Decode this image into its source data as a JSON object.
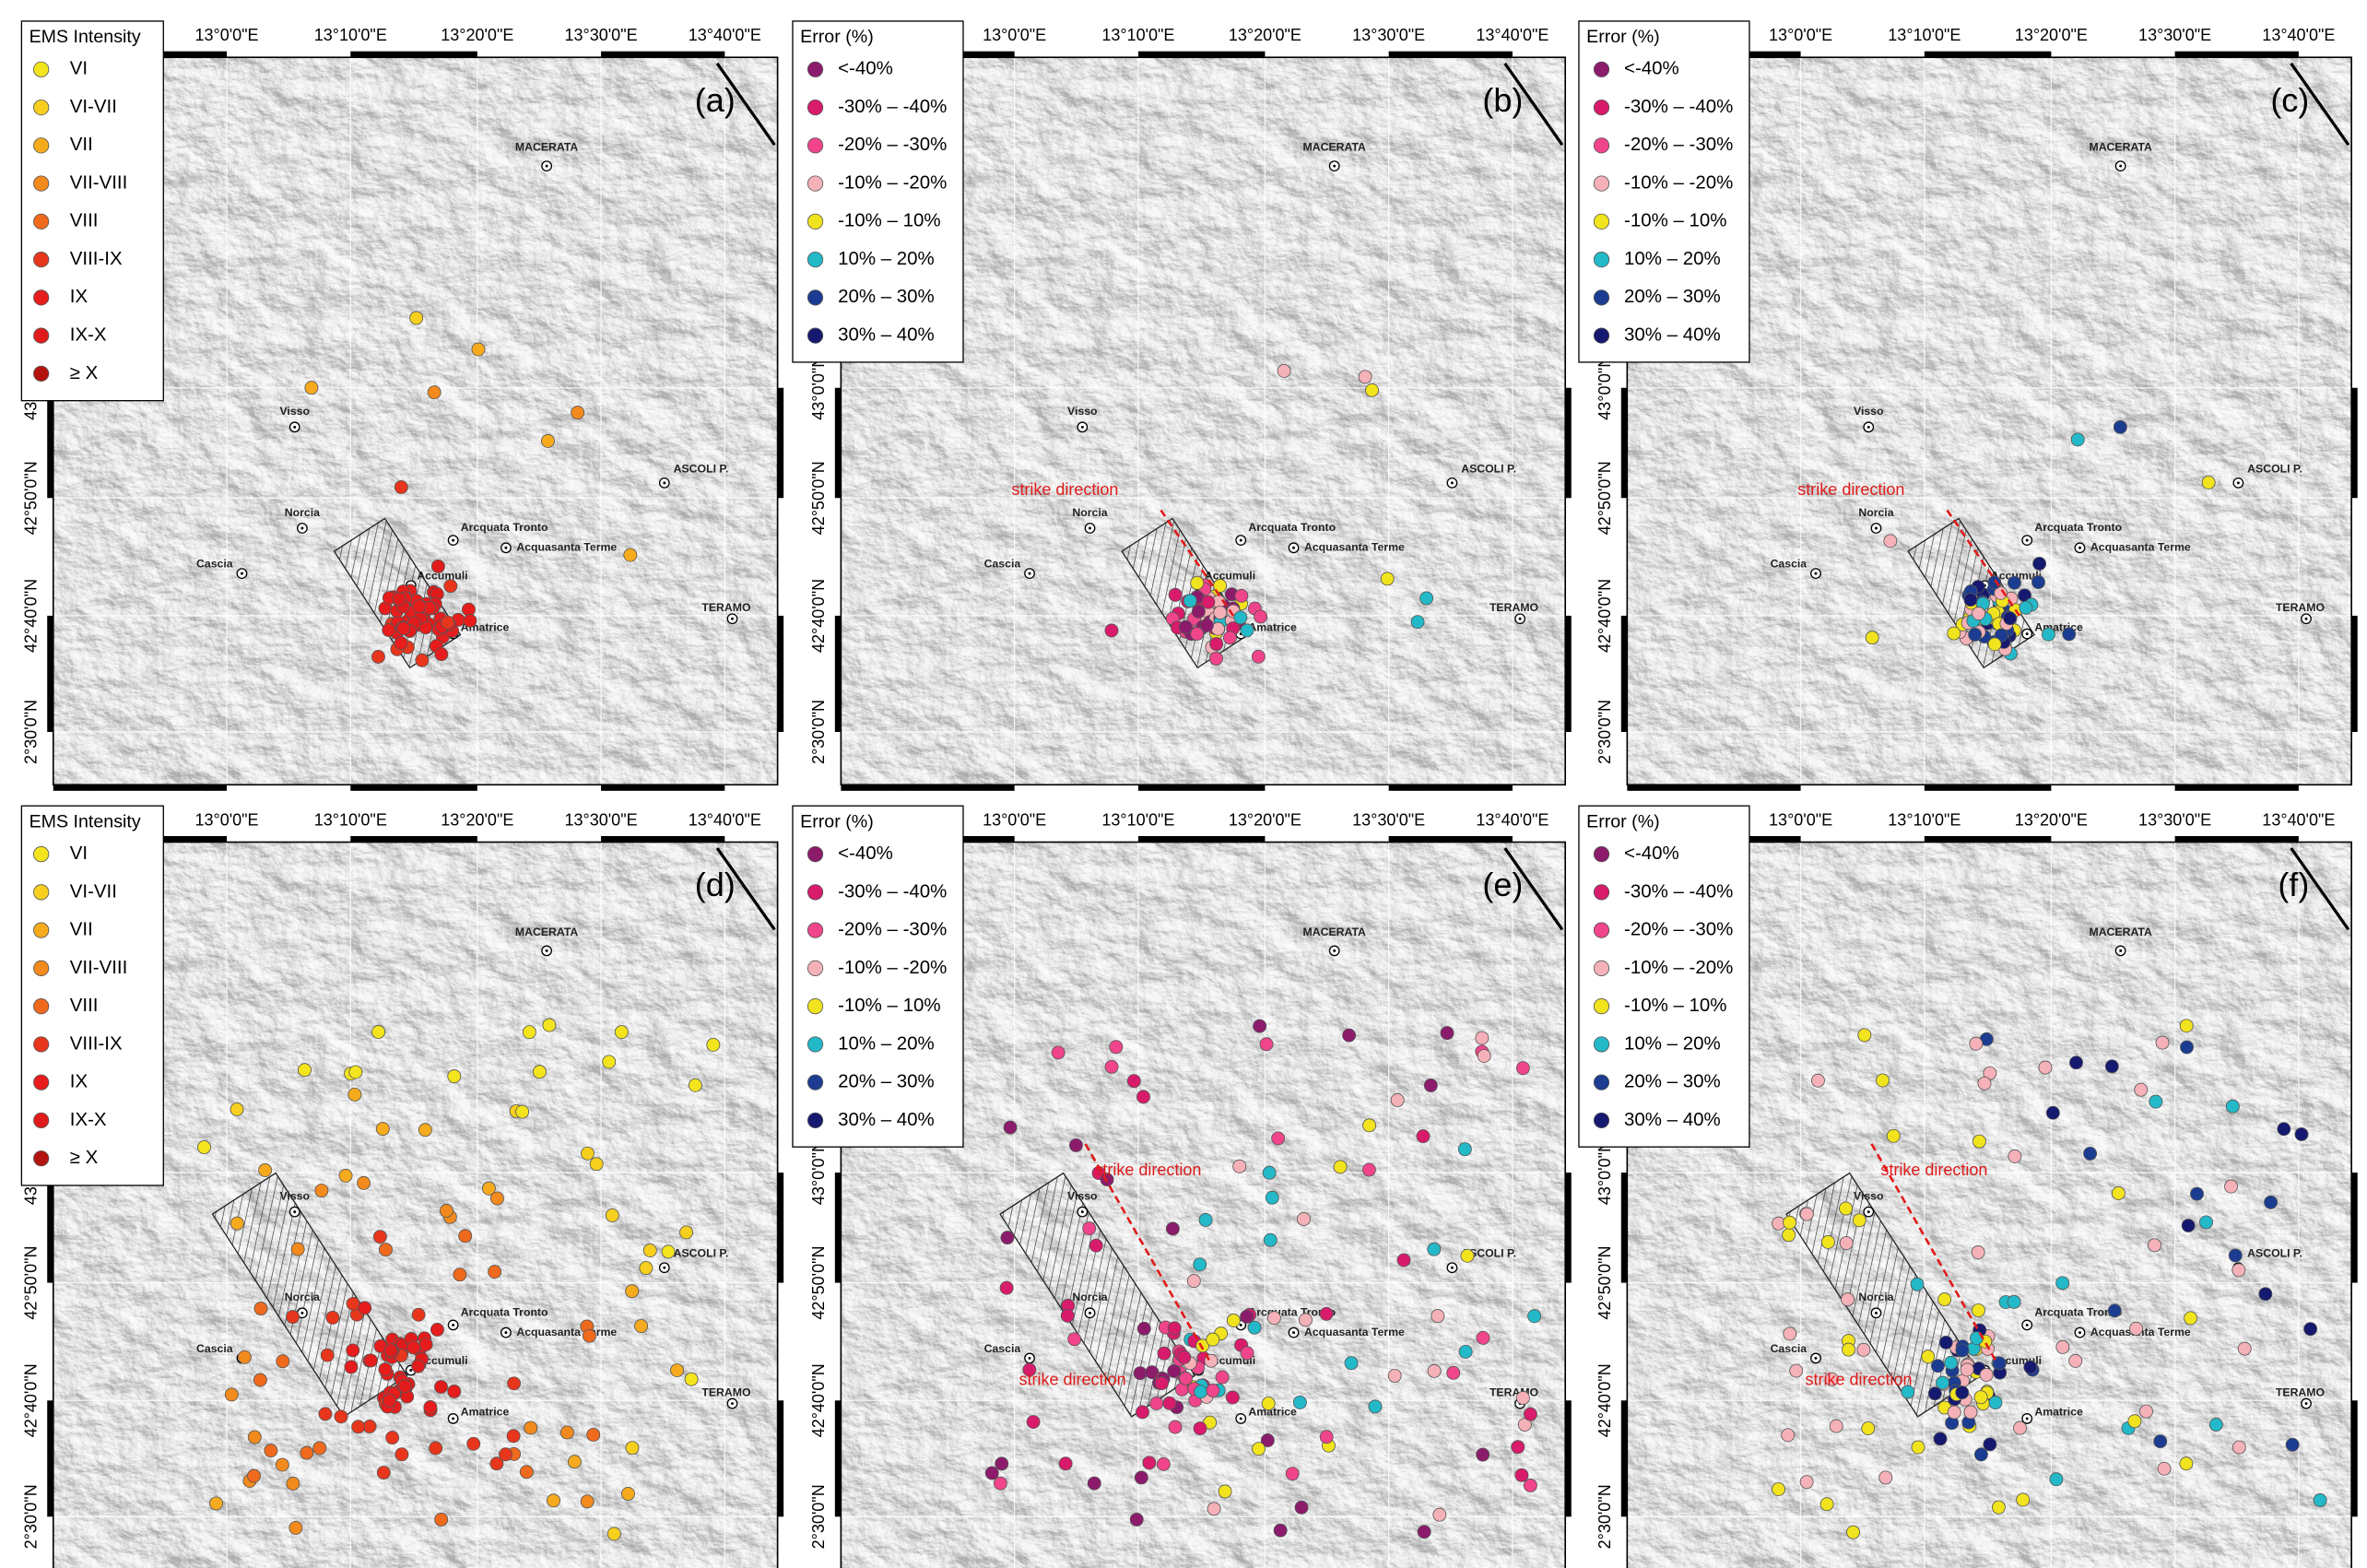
{
  "lon_labels": [
    "13°0'0\"E",
    "13°10'0\"E",
    "13°20'0\"E",
    "13°30'0\"E",
    "13°40'0\"E"
  ],
  "lat_labels": [
    "43°0'0\"N",
    "42°50'0\"N",
    "42°40'0\"N",
    "2°30'0\"N"
  ],
  "towns": [
    "MACERATA",
    "Visso",
    "Norcia",
    "Cascia",
    "Arcquata Tronto",
    "Acquasanta Terme",
    "Accumuli",
    "Amatrice",
    "ASCOLI P.",
    "TERAMO"
  ],
  "legends": {
    "ems": {
      "title": "EMS Intensity",
      "items": [
        {
          "label": "VI",
          "color": "#f3e41e"
        },
        {
          "label": "VI-VII",
          "color": "#f6cf1f"
        },
        {
          "label": "VII",
          "color": "#f6aa1e"
        },
        {
          "label": "VII-VIII",
          "color": "#f28a1e"
        },
        {
          "label": "VIII",
          "color": "#ef6a1d"
        },
        {
          "label": "VIII-IX",
          "color": "#e8361c"
        },
        {
          "label": "IX",
          "color": "#e61d1c"
        },
        {
          "label": "IX-X",
          "color": "#e01b1b"
        },
        {
          "label": "≥ X",
          "color": "#b3130f"
        }
      ]
    },
    "error": {
      "title": "Error (%)",
      "items": [
        {
          "label": "<-40%",
          "color": "#8c1b6c"
        },
        {
          "label": "-30% – -40%",
          "color": "#d91b6b"
        },
        {
          "label": "-20% – -30%",
          "color": "#f0458b"
        },
        {
          "label": "-10% – -20%",
          "color": "#f5b1b8"
        },
        {
          "label": "-10% – 10%",
          "color": "#f1e31d"
        },
        {
          "label": "10% – 20%",
          "color": "#23b9c9"
        },
        {
          "label": "20% – 30%",
          "color": "#1b3c90"
        },
        {
          "label": "30% – 40%",
          "color": "#15196f"
        }
      ]
    }
  },
  "panels": [
    {
      "label": "(a)",
      "legend": "ems"
    },
    {
      "label": "(b)",
      "legend": "error",
      "annotation": "strike direction"
    },
    {
      "label": "(c)",
      "legend": "error",
      "annotation": "strike direction"
    },
    {
      "label": "(d)",
      "legend": "ems"
    },
    {
      "label": "(e)",
      "legend": "error",
      "annotation": "strike direction"
    },
    {
      "label": "(f)",
      "legend": "error",
      "annotation": "strike direction"
    }
  ]
}
